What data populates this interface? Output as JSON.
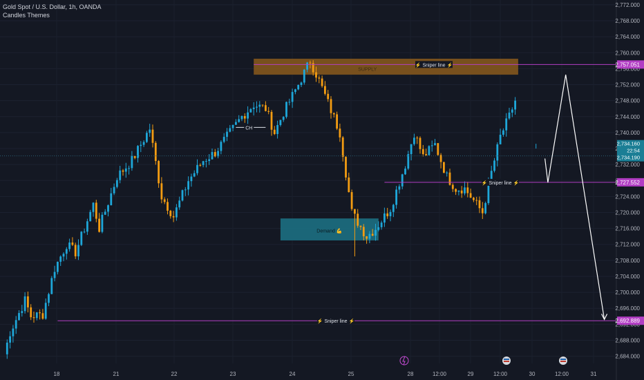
{
  "header": {
    "symbol_line": "Gold Spot / U.S. Dollar, 1h, OANDA",
    "indicator_name": "Candles Themes"
  },
  "colors": {
    "background": "#141823",
    "up": "#1ea7d9",
    "down": "#f39c12",
    "axis_text": "#b2b5be",
    "sniper_line": "#b23ec4",
    "supply_fill": "#8a5a1c",
    "demand_fill": "#1c6f82",
    "current_line": "#2a5f73"
  },
  "chart_data": {
    "type": "candlestick",
    "title": "Gold Spot / U.S. Dollar, 1h, OANDA",
    "y_axis": {
      "ylim": [
        2682.2,
        2773.2
      ],
      "ticks": [
        "2,772.000",
        "2,768.000",
        "2,764.000",
        "2,760.000",
        "2,756.000",
        "2,752.000",
        "2,748.000",
        "2,744.000",
        "2,740.000",
        "2,736.000",
        "2,732.000",
        "2,728.000",
        "2,724.000",
        "2,720.000",
        "2,716.000",
        "2,712.000",
        "2,708.000",
        "2,704.000",
        "2,700.000",
        "2,696.000",
        "2,692.000",
        "2,688.000",
        "2,684.000"
      ]
    },
    "x_axis": {
      "ticks": [
        "18",
        "21",
        "22",
        "23",
        "24",
        "25",
        "28",
        "12:00",
        "29",
        "12:00",
        "30",
        "12:00",
        "31"
      ]
    },
    "price_path": [
      [
        2684.5,
        0
      ],
      [
        2690,
        2
      ],
      [
        2698,
        7
      ],
      [
        2694,
        9
      ],
      [
        2694.5,
        13
      ],
      [
        2706,
        17
      ],
      [
        2712,
        21
      ],
      [
        2710,
        24
      ],
      [
        2722,
        30
      ],
      [
        2716,
        32
      ],
      [
        2729,
        38
      ],
      [
        2733,
        43
      ],
      [
        2741,
        49
      ],
      [
        2724,
        53
      ],
      [
        2719,
        57
      ],
      [
        2728,
        62
      ],
      [
        2733,
        67
      ],
      [
        2735,
        71
      ],
      [
        2740,
        76
      ],
      [
        2744,
        80
      ],
      [
        2747,
        84
      ],
      [
        2746,
        88
      ],
      [
        2740,
        91
      ],
      [
        2745,
        94
      ],
      [
        2752,
        99
      ],
      [
        2758,
        103
      ],
      [
        2753,
        106
      ],
      [
        2740,
        113
      ],
      [
        2720,
        117
      ],
      [
        2714,
        122
      ],
      [
        2716,
        125
      ],
      [
        2721,
        130
      ],
      [
        2732,
        135
      ],
      [
        2740,
        138
      ],
      [
        2734,
        141
      ],
      [
        2737,
        145
      ],
      [
        2729,
        149
      ],
      [
        2726,
        152
      ],
      [
        2726,
        155
      ],
      [
        2723,
        158
      ],
      [
        2720,
        161
      ],
      [
        2730,
        164
      ],
      [
        2739,
        167
      ],
      [
        2744,
        170
      ],
      [
        2748,
        172
      ]
    ],
    "wicks_extra": [
      [
        2709,
        118
      ],
      [
        2713,
        121
      ],
      [
        2736,
        179
      ]
    ],
    "sniper_lines": [
      {
        "label": "⚡ Sniper line ⚡",
        "price": 2757.051,
        "price_label": "2,757.051"
      },
      {
        "label": "⚡ Sniper line ⚡",
        "price": 2727.552,
        "price_label": "2,727.552"
      },
      {
        "label": "⚡ Sniper line ⚡",
        "price": 2692.889,
        "price_label": "2,692.889"
      }
    ],
    "zones": [
      {
        "label": "SUPPLY",
        "price_top": 2758.5,
        "price_bottom": 2754.5
      },
      {
        "label": "Demand 💪",
        "price_top": 2718.5,
        "price_bottom": 2713
      }
    ],
    "structure_label": "CH",
    "current_price": {
      "price": 2734.16,
      "top_label": "2,734.160",
      "countdown": "22:54",
      "bottom_label": "2,734.190"
    },
    "projection": [
      {
        "price": 2733.5,
        "bar": 182
      },
      {
        "price": 2727.5,
        "bar": 183
      },
      {
        "price": 2754.5,
        "bar": 189
      },
      {
        "price": 2693.2,
        "bar": 202
      }
    ],
    "event_icons": [
      "lightning",
      "flag",
      "flag"
    ]
  }
}
